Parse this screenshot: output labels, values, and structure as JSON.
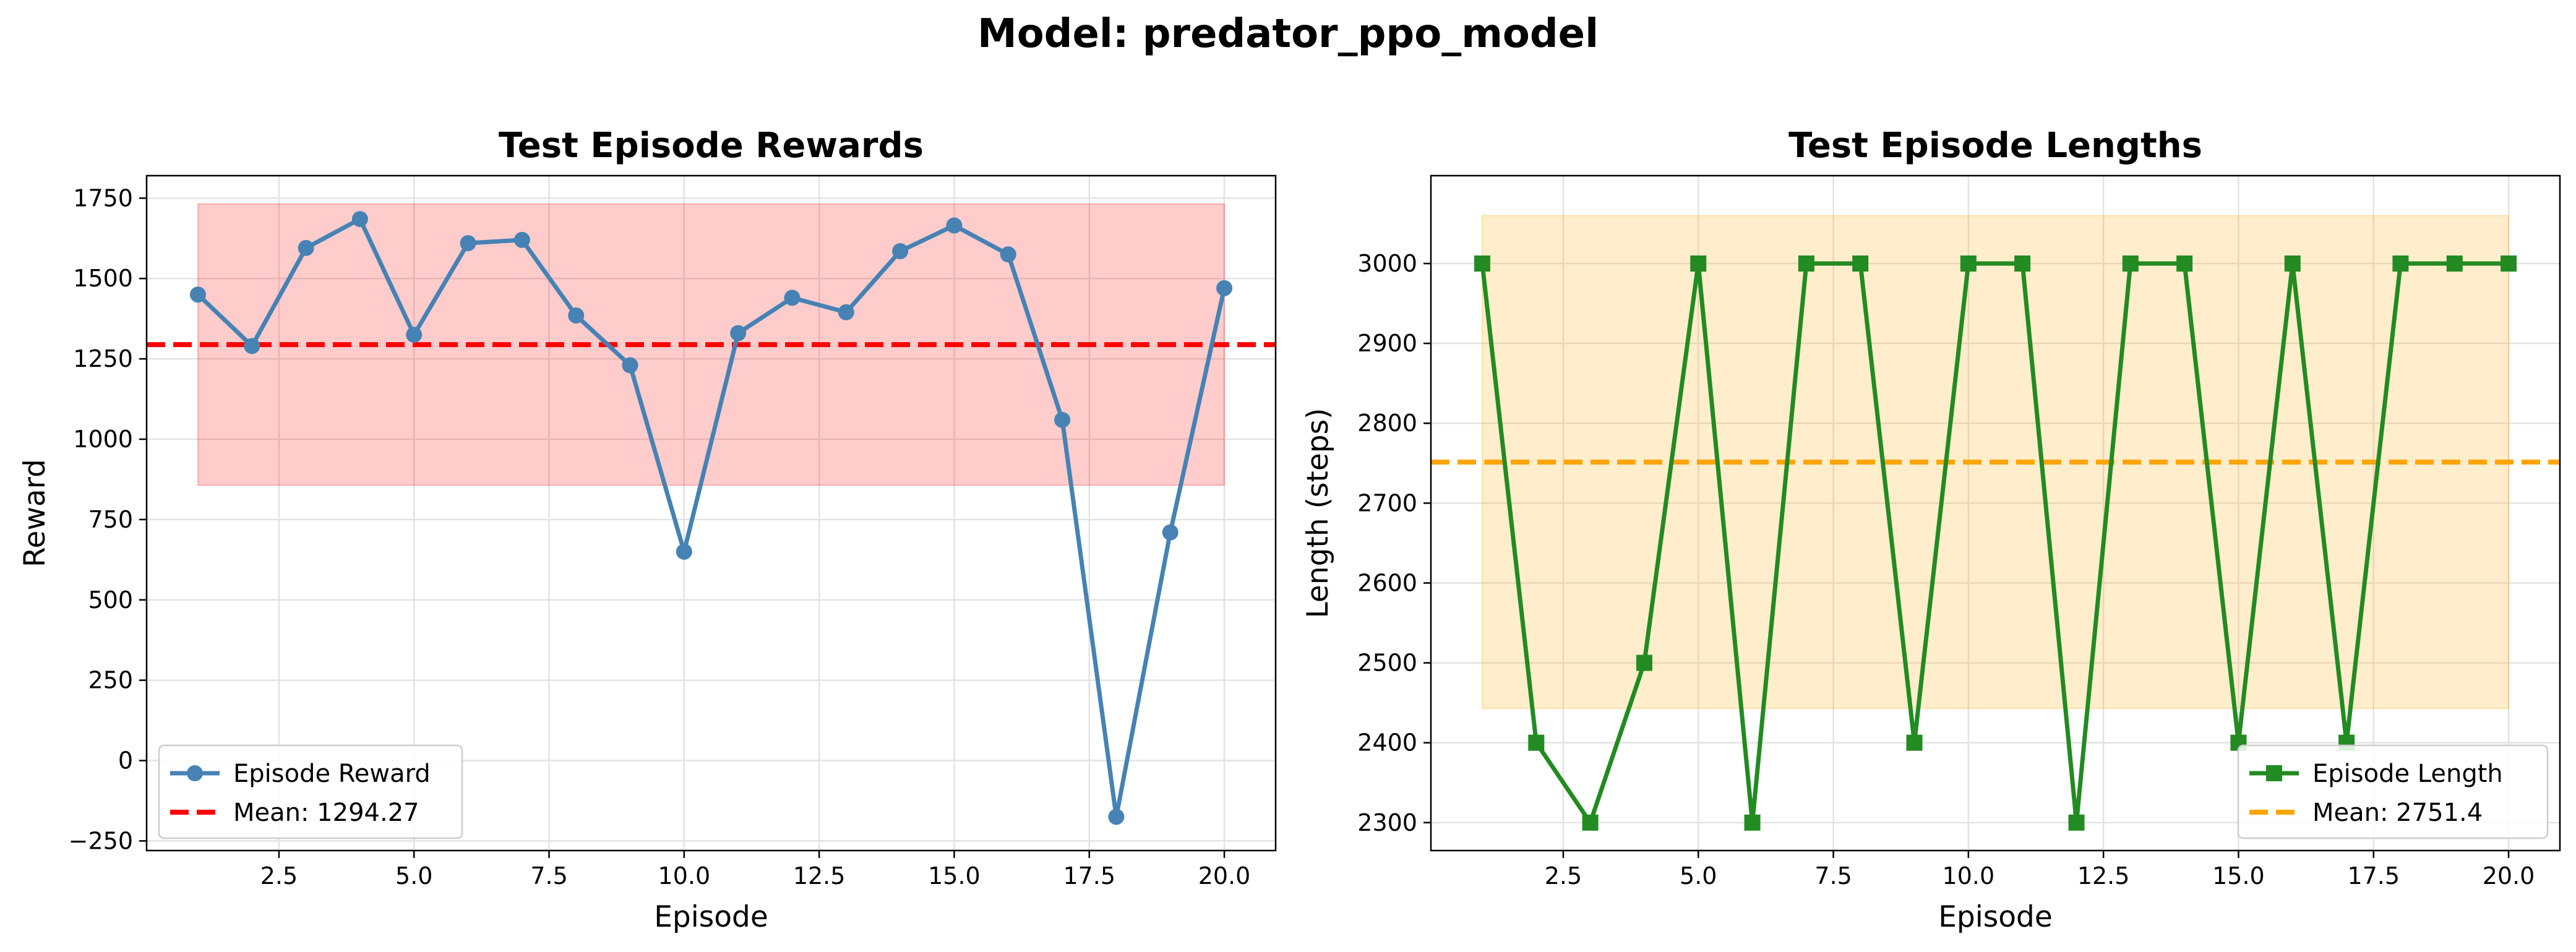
{
  "suptitle": "Model: predator_ppo_model",
  "chart_data": [
    {
      "type": "line",
      "title": "Test Episode Rewards",
      "xlabel": "Episode",
      "ylabel": "Reward",
      "xlim": [
        0.05,
        20.95
      ],
      "ylim": [
        -280,
        1820
      ],
      "xticks": [
        2.5,
        5.0,
        7.5,
        10.0,
        12.5,
        15.0,
        17.5,
        20.0
      ],
      "xtick_labels": [
        "2.5",
        "5.0",
        "7.5",
        "10.0",
        "12.5",
        "15.0",
        "17.5",
        "20.0"
      ],
      "yticks": [
        -250,
        0,
        250,
        500,
        750,
        1000,
        1250,
        1500,
        1750
      ],
      "ytick_labels": [
        "−250",
        "0",
        "250",
        "500",
        "750",
        "1000",
        "1250",
        "1500",
        "1750"
      ],
      "grid": true,
      "legend_position": "lower-left",
      "series": [
        {
          "name": "Episode Reward",
          "color": "#4682b4",
          "marker": "circle",
          "x": [
            1,
            2,
            3,
            4,
            5,
            6,
            7,
            8,
            9,
            10,
            11,
            12,
            13,
            14,
            15,
            16,
            17,
            18,
            19,
            20
          ],
          "y": [
            1450,
            1290,
            1595,
            1685,
            1325,
            1610,
            1620,
            1385,
            1230,
            650,
            1330,
            1440,
            1395,
            1585,
            1665,
            1575,
            1060,
            -175,
            710,
            1470
          ]
        }
      ],
      "mean_line": {
        "label": "Mean: 1294.27",
        "value": 1294.27,
        "color": "#ff0000",
        "style": "dashed"
      },
      "band": {
        "x": [
          1,
          20
        ],
        "y": [
          857,
          1732
        ],
        "color": "#ff0000"
      }
    },
    {
      "type": "line",
      "title": "Test Episode Lengths",
      "xlabel": "Episode",
      "ylabel": "Length (steps)",
      "xlim": [
        0.05,
        20.95
      ],
      "ylim": [
        2265,
        3110
      ],
      "xticks": [
        2.5,
        5.0,
        7.5,
        10.0,
        12.5,
        15.0,
        17.5,
        20.0
      ],
      "xtick_labels": [
        "2.5",
        "5.0",
        "7.5",
        "10.0",
        "12.5",
        "15.0",
        "17.5",
        "20.0"
      ],
      "yticks": [
        2300,
        2400,
        2500,
        2600,
        2700,
        2800,
        2900,
        3000
      ],
      "ytick_labels": [
        "2300",
        "2400",
        "2500",
        "2600",
        "2700",
        "2800",
        "2900",
        "3000"
      ],
      "grid": true,
      "legend_position": "lower-right",
      "series": [
        {
          "name": "Episode Length",
          "color": "#228b22",
          "marker": "square",
          "x": [
            1,
            2,
            3,
            4,
            5,
            6,
            7,
            8,
            9,
            10,
            11,
            12,
            13,
            14,
            15,
            16,
            17,
            18,
            19,
            20
          ],
          "y": [
            3000,
            2400,
            2300,
            2500,
            3000,
            2300,
            3000,
            3000,
            2400,
            3000,
            3000,
            2300,
            3000,
            3000,
            2400,
            3000,
            2400,
            3000,
            3000,
            3000
          ]
        }
      ],
      "mean_line": {
        "label": "Mean: 2751.4",
        "value": 2751.4,
        "color": "#ffa500",
        "style": "dashed"
      },
      "band": {
        "x": [
          1,
          20
        ],
        "y": [
          2443,
          3060
        ],
        "color": "#ffa500"
      }
    }
  ]
}
